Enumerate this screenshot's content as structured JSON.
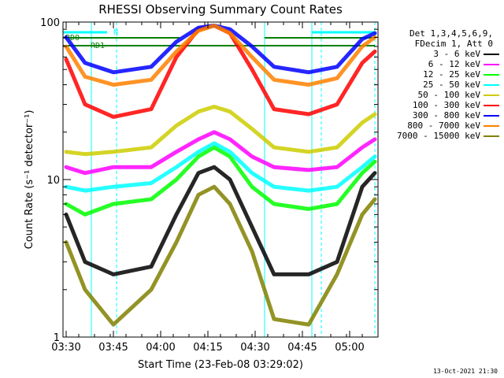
{
  "chart_data": {
    "type": "line",
    "title": "RHESSI Observing Summary Count Rates",
    "xlabel": "Start Time (23-Feb-08 03:29:02)",
    "ylabel": "Count Rate (s⁻¹ detector⁻¹)",
    "yscale": "log",
    "ylim": [
      1,
      100
    ],
    "xlim": [
      "03:29",
      "05:09"
    ],
    "x_ticks": [
      "03:30",
      "03:45",
      "04:00",
      "04:15",
      "04:30",
      "04:45",
      "05:00"
    ],
    "y_ticks": [
      "1",
      "10",
      "100"
    ],
    "grid": false,
    "legend_position": "right",
    "legend_header": [
      "Det 1,3,4,5,6,9,",
      "FDecim 1, Att 0"
    ],
    "annotations": [
      {
        "text": "N",
        "color": "#00ffff"
      },
      {
        "text": "RD0",
        "color": "#008000"
      },
      {
        "text": "RD1",
        "color": "#008000"
      }
    ],
    "series": [
      {
        "name": "3 - 6 keV",
        "color": "#000000",
        "x": [
          "03:30",
          "03:36",
          "03:45",
          "03:57",
          "04:05",
          "04:12",
          "04:17",
          "04:22",
          "04:29",
          "04:36",
          "04:47",
          "04:56",
          "05:04",
          "05:08"
        ],
        "y": [
          6.0,
          3.0,
          2.5,
          2.8,
          6.0,
          11.0,
          12.0,
          10.0,
          5.0,
          2.5,
          2.5,
          3.0,
          9.0,
          11.0
        ]
      },
      {
        "name": "6 - 12 keV",
        "color": "#ff00ff",
        "x": [
          "03:30",
          "03:36",
          "03:45",
          "03:57",
          "04:05",
          "04:12",
          "04:17",
          "04:22",
          "04:29",
          "04:36",
          "04:47",
          "04:56",
          "05:04",
          "05:08"
        ],
        "y": [
          12.0,
          11.0,
          12.0,
          12.0,
          15.0,
          18.0,
          20.0,
          18.0,
          14.0,
          12.0,
          11.5,
          12.0,
          16.0,
          18.0
        ]
      },
      {
        "name": "12 - 25 keV",
        "color": "#00ff00",
        "x": [
          "03:30",
          "03:36",
          "03:45",
          "03:57",
          "04:05",
          "04:12",
          "04:17",
          "04:22",
          "04:29",
          "04:36",
          "04:47",
          "04:56",
          "05:04",
          "05:08"
        ],
        "y": [
          7.0,
          6.0,
          7.0,
          7.5,
          10.0,
          14.0,
          16.0,
          14.0,
          9.0,
          7.0,
          6.5,
          7.0,
          11.0,
          13.0
        ]
      },
      {
        "name": "25 - 50 keV",
        "color": "#00ffff",
        "x": [
          "03:30",
          "03:36",
          "03:45",
          "03:57",
          "04:05",
          "04:12",
          "04:17",
          "04:22",
          "04:29",
          "04:36",
          "04:47",
          "04:56",
          "05:04",
          "05:08"
        ],
        "y": [
          9.0,
          8.5,
          9.0,
          9.5,
          12.0,
          15.0,
          17.0,
          15.0,
          11.0,
          9.0,
          8.5,
          9.0,
          12.0,
          14.0
        ]
      },
      {
        "name": "50 - 100 keV",
        "color": "#cccc00",
        "x": [
          "03:30",
          "03:36",
          "03:45",
          "03:57",
          "04:05",
          "04:12",
          "04:17",
          "04:22",
          "04:29",
          "04:36",
          "04:47",
          "04:56",
          "05:04",
          "05:08"
        ],
        "y": [
          15.0,
          14.5,
          15.0,
          16.0,
          22.0,
          27.0,
          29.0,
          27.0,
          21.0,
          16.0,
          15.0,
          16.0,
          23.0,
          26.0
        ]
      },
      {
        "name": "100 - 300 keV",
        "color": "#ff0000",
        "x": [
          "03:30",
          "03:36",
          "03:45",
          "03:57",
          "04:05",
          "04:12",
          "04:17",
          "04:22",
          "04:29",
          "04:36",
          "04:47",
          "04:56",
          "05:04",
          "05:08"
        ],
        "y": [
          58.0,
          30.0,
          25.0,
          28.0,
          60.0,
          90.0,
          95.0,
          85.0,
          50.0,
          28.0,
          26.0,
          30.0,
          55.0,
          65.0
        ]
      },
      {
        "name": "300 - 800 keV",
        "color": "#0000ff",
        "x": [
          "03:30",
          "03:36",
          "03:45",
          "03:57",
          "04:05",
          "04:12",
          "04:17",
          "04:22",
          "04:29",
          "04:36",
          "04:47",
          "04:56",
          "05:04",
          "05:08"
        ],
        "y": [
          80.0,
          55.0,
          48.0,
          52.0,
          75.0,
          92.0,
          95.0,
          90.0,
          70.0,
          52.0,
          48.0,
          52.0,
          78.0,
          85.0
        ]
      },
      {
        "name": "800 - 7000 keV",
        "color": "#ff8000",
        "x": [
          "03:30",
          "03:36",
          "03:45",
          "03:57",
          "04:05",
          "04:12",
          "04:17",
          "04:22",
          "04:29",
          "04:36",
          "04:47",
          "04:56",
          "05:04",
          "05:08"
        ],
        "y": [
          70.0,
          45.0,
          40.0,
          43.0,
          65.0,
          88.0,
          95.0,
          85.0,
          60.0,
          43.0,
          40.0,
          44.0,
          70.0,
          80.0
        ]
      },
      {
        "name": "7000 - 15000 keV",
        "color": "#808000",
        "x": [
          "03:30",
          "03:36",
          "03:45",
          "03:57",
          "04:05",
          "04:12",
          "04:17",
          "04:22",
          "04:29",
          "04:36",
          "04:47",
          "04:56",
          "05:04",
          "05:08"
        ],
        "y": [
          4.0,
          2.0,
          1.2,
          2.0,
          4.0,
          8.0,
          9.0,
          7.0,
          3.5,
          1.3,
          1.2,
          2.5,
          6.0,
          7.5
        ]
      }
    ]
  },
  "footer": {
    "timestamp": "13-Oct-2021 21:30"
  }
}
